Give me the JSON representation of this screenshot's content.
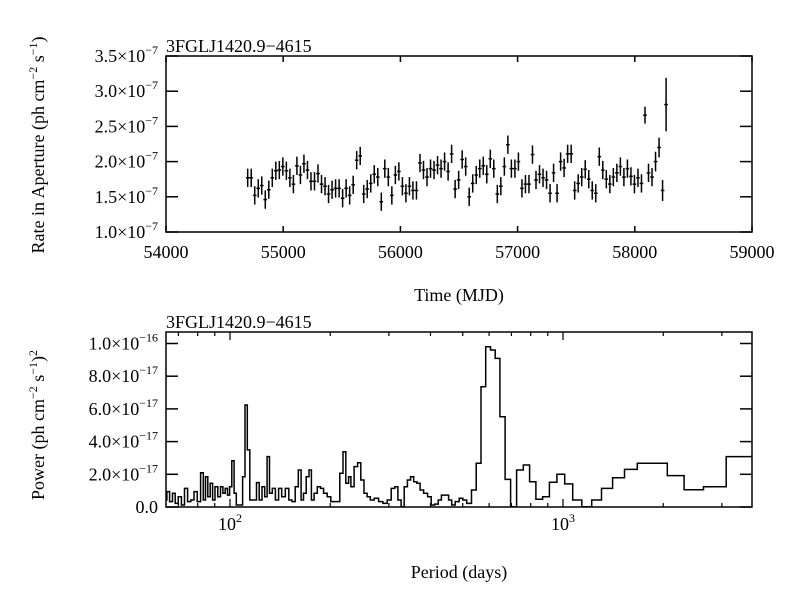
{
  "chart_data": [
    {
      "type": "scatter",
      "title": "3FGLJ1420.9−4615",
      "xlabel": "Time (MJD)",
      "ylabel": "Rate in Aperture (ph cm⁻² s⁻¹)",
      "ylabel_parts": [
        "Rate in Aperture (ph cm",
        "−2",
        " s",
        "−1",
        ")"
      ],
      "xlim": [
        54000,
        59000
      ],
      "ylim": [
        1e-07,
        3.5e-07
      ],
      "y_unit_exponent": -7,
      "x_ticks": [
        "54000",
        "55000",
        "56000",
        "57000",
        "58000",
        "59000"
      ],
      "y_ticks": [
        {
          "mant": "1.0",
          "exp": "−7"
        },
        {
          "mant": "1.5",
          "exp": "−7"
        },
        {
          "mant": "2.0",
          "exp": "−7"
        },
        {
          "mant": "2.5",
          "exp": "−7"
        },
        {
          "mant": "3.0",
          "exp": "−7"
        },
        {
          "mant": "3.5",
          "exp": "−7"
        }
      ],
      "bin_days": 30,
      "x_start": 54697,
      "values": [
        1.77,
        1.77,
        1.52,
        1.62,
        1.66,
        1.46,
        1.6,
        1.77,
        1.87,
        1.88,
        1.93,
        1.87,
        1.77,
        1.68,
        1.94,
        1.81,
        1.97,
        1.88,
        1.72,
        1.72,
        1.83,
        1.68,
        1.65,
        1.54,
        1.6,
        1.62,
        1.62,
        1.48,
        1.62,
        1.52,
        1.67,
        2.02,
        2.08,
        1.54,
        1.61,
        1.69,
        1.82,
        1.78,
        1.43,
        1.9,
        1.78,
        1.52,
        1.81,
        1.86,
        1.65,
        1.55,
        1.65,
        1.59,
        1.59,
        1.98,
        1.88,
        1.78,
        1.9,
        1.88,
        1.95,
        1.9,
        2.0,
        1.86,
        2.11,
        1.61,
        1.74,
        2.03,
        1.93,
        1.5,
        1.69,
        1.81,
        1.9,
        1.94,
        1.82,
        2.04,
        1.9,
        1.54,
        1.65,
        1.93,
        2.24,
        1.9,
        1.9,
        2.0,
        1.62,
        1.68,
        1.68,
        2.1,
        1.74,
        1.82,
        1.77,
        1.74,
        1.55,
        1.84,
        1.55,
        2.0,
        1.91,
        2.11,
        2.11,
        1.59,
        1.69,
        1.78,
        1.89,
        1.75,
        1.59,
        1.55,
        2.07,
        1.88,
        1.75,
        1.68,
        1.78,
        1.84,
        1.93,
        1.78,
        1.9,
        1.79,
        1.68,
        1.77,
        1.69,
        2.66,
        1.84,
        1.78,
        2.0,
        2.2,
        1.59,
        2.81
      ],
      "errors": [
        0.13,
        0.13,
        0.13,
        0.13,
        0.13,
        0.13,
        0.13,
        0.13,
        0.13,
        0.13,
        0.13,
        0.13,
        0.13,
        0.13,
        0.13,
        0.13,
        0.13,
        0.13,
        0.13,
        0.13,
        0.13,
        0.13,
        0.13,
        0.13,
        0.13,
        0.13,
        0.13,
        0.13,
        0.13,
        0.13,
        0.13,
        0.13,
        0.13,
        0.13,
        0.13,
        0.13,
        0.13,
        0.13,
        0.13,
        0.13,
        0.13,
        0.13,
        0.13,
        0.13,
        0.13,
        0.13,
        0.13,
        0.13,
        0.13,
        0.13,
        0.13,
        0.13,
        0.13,
        0.13,
        0.13,
        0.13,
        0.13,
        0.13,
        0.13,
        0.13,
        0.13,
        0.13,
        0.13,
        0.13,
        0.13,
        0.13,
        0.13,
        0.13,
        0.13,
        0.13,
        0.13,
        0.13,
        0.13,
        0.13,
        0.13,
        0.13,
        0.13,
        0.13,
        0.13,
        0.13,
        0.13,
        0.13,
        0.13,
        0.13,
        0.13,
        0.13,
        0.13,
        0.13,
        0.13,
        0.13,
        0.13,
        0.13,
        0.13,
        0.13,
        0.13,
        0.13,
        0.13,
        0.13,
        0.13,
        0.13,
        0.13,
        0.13,
        0.13,
        0.13,
        0.13,
        0.13,
        0.13,
        0.13,
        0.13,
        0.13,
        0.13,
        0.13,
        0.13,
        0.12,
        0.13,
        0.13,
        0.14,
        0.14,
        0.15,
        0.38
      ]
    },
    {
      "type": "line",
      "style": "step",
      "title": "3FGLJ1420.9−4615",
      "xlabel": "Period (days)",
      "ylabel_parts": [
        "Power (ph cm",
        "−2",
        " s",
        "−1",
        ")",
        "2"
      ],
      "x_scale": "log",
      "xlim": [
        64,
        3700
      ],
      "ylim": [
        0,
        1.07e-16
      ],
      "y_unit_exponent": -17,
      "x_ticks": [
        {
          "base": "10",
          "exp": "2"
        },
        {
          "base": "10",
          "exp": "3"
        }
      ],
      "y_ticks": [
        {
          "mant": "0.0",
          "exp": ""
        },
        {
          "mant": "2.0",
          "exp": "−17"
        },
        {
          "mant": "4.0",
          "exp": "−17"
        },
        {
          "mant": "6.0",
          "exp": "−17"
        },
        {
          "mant": "8.0",
          "exp": "−17"
        },
        {
          "mant": "1.0",
          "exp": "−16"
        }
      ],
      "period": [
        64.2,
        65.1,
        66.6,
        67.8,
        69.1,
        70.7,
        72.2,
        73.8,
        75.4,
        77.1,
        78.8,
        80.6,
        82.6,
        83.7,
        85.1,
        86.5,
        87.9,
        89.4,
        90.9,
        92.9,
        94.4,
        96.0,
        97.5,
        99.1,
        100.3,
        102.2,
        103.6,
        105.3,
        108.2,
        110.0,
        111.8,
        113.7,
        115.6,
        118.8,
        121.4,
        123.4,
        126.1,
        128.2,
        130.3,
        132.5,
        135.4,
        138.4,
        141.5,
        144.5,
        148.6,
        151.8,
        155.2,
        158.7,
        162.1,
        164.8,
        167.6,
        171.2,
        174.1,
        177.0,
        180.8,
        184.9,
        189.0,
        193.1,
        198.6,
        202.9,
        210.9,
        216.6,
        220.3,
        225.3,
        228.8,
        232.7,
        239.0,
        244.3,
        249.8,
        255.3,
        260.9,
        266.7,
        275.5,
        283.3,
        292.6,
        300.6,
        309.0,
        316.0,
        322.8,
        330.0,
        337.2,
        344.7,
        352.4,
        360.2,
        368.2,
        376.4,
        386.7,
        397.6,
        406.2,
        417.5,
        426.6,
        436.1,
        448.4,
        458.1,
        468.3,
        481.2,
        494.7,
        505.4,
        522.4,
        539.7,
        557.9,
        576.4,
        595.8,
        615.5,
        635.9,
        657.3,
        682.8,
        709.8,
        741.3,
        778.8,
        808.9,
        849.6,
        887.9,
        932.6,
        985,
        1040,
        1099,
        1180,
        1260,
        1352,
        1468,
        1594,
        1753,
        1956,
        2163,
        2467,
        2830,
        3377,
        3687
      ],
      "power_1e-17": [
        0.43,
        0.94,
        0.33,
        0.84,
        0.22,
        0.63,
        0.12,
        1.14,
        0.33,
        0.43,
        0.94,
        0.33,
        2.1,
        0.43,
        1.85,
        0.63,
        1.45,
        0.43,
        1.24,
        0.63,
        1.24,
        0.84,
        1.14,
        0.73,
        1.24,
        2.83,
        0.84,
        0.12,
        0.12,
        1.85,
        6.24,
        3.49,
        0.43,
        0.43,
        1.49,
        0.43,
        1.24,
        0.63,
        3.08,
        0.84,
        1.14,
        0.43,
        1.14,
        0.63,
        1.14,
        0.43,
        0.33,
        1.24,
        2.26,
        0.43,
        0.84,
        1.85,
        2.26,
        0.43,
        0.84,
        1.24,
        1.14,
        0.84,
        0.63,
        0.33,
        0.33,
        2.06,
        3.38,
        1.45,
        1.85,
        1.24,
        2.47,
        2.71,
        1.65,
        0.84,
        0.63,
        0.43,
        0.53,
        0.33,
        0.22,
        0.43,
        1.14,
        1.24,
        0.43,
        0.02,
        1.24,
        1.65,
        1.85,
        1.55,
        1.45,
        1.04,
        0.84,
        0.63,
        0.12,
        0.18,
        0.43,
        0.73,
        0.73,
        0.43,
        0.12,
        0.33,
        0.53,
        0.43,
        0.22,
        1.04,
        2.67,
        7.36,
        9.8,
        9.6,
        9.09,
        5.52,
        1.69,
        0.02,
        2.26,
        2.57,
        1.55,
        0.47,
        0.63,
        1.51,
        2.0,
        1.41,
        0.43,
        0.02,
        0.43,
        1.14,
        1.79,
        2.3,
        2.67,
        2.67,
        1.92,
        1.06,
        1.24,
        3.08,
        3.08
      ]
    }
  ]
}
